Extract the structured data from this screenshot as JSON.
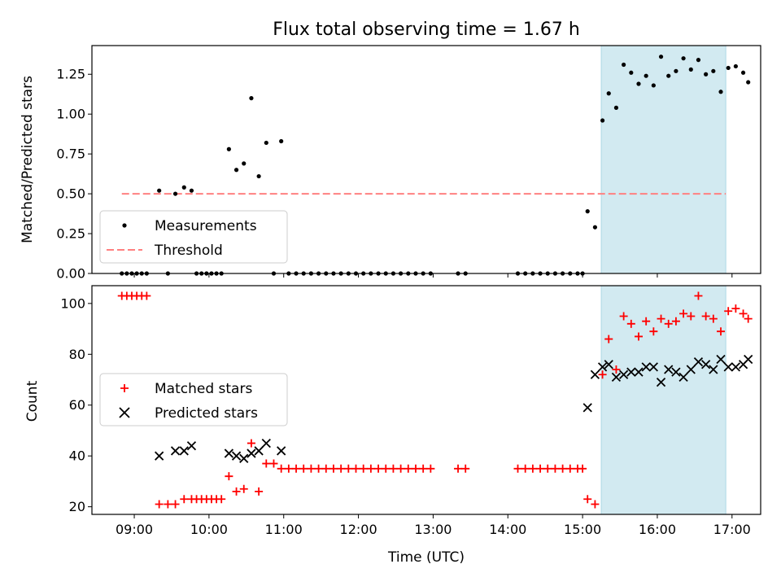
{
  "colors": {
    "measurement": "#000000",
    "threshold": "#ff8080",
    "matched": "#ff0000",
    "predicted": "#000000",
    "highlight": "#add8e6"
  },
  "chart_data": [
    {
      "type": "scatter",
      "title": "Flux total observing time = 1.67 h",
      "xlabel": "",
      "ylabel": "Matched/Predicted stars",
      "xlim": [
        "08:26",
        "17:23"
      ],
      "ylim": [
        0,
        1.43
      ],
      "yticks": [
        "0.00",
        "0.25",
        "0.50",
        "0.75",
        "1.00",
        "1.25"
      ],
      "highlight_span": [
        "15:15",
        "16:55"
      ],
      "legend": {
        "position": "lower-left",
        "entries": [
          "Measurements",
          "Threshold"
        ]
      },
      "threshold": {
        "name": "Threshold",
        "y": 0.5,
        "x": [
          "08:50",
          "16:55"
        ]
      },
      "series": [
        {
          "name": "Measurements",
          "marker": "dot",
          "points": [
            [
              "08:50",
              0
            ],
            [
              "08:54",
              0
            ],
            [
              "08:58",
              0
            ],
            [
              "09:02",
              0
            ],
            [
              "09:06",
              0
            ],
            [
              "09:10",
              0
            ],
            [
              "09:20",
              0.52
            ],
            [
              "09:27",
              0
            ],
            [
              "09:33",
              0.5
            ],
            [
              "09:40",
              0.54
            ],
            [
              "09:46",
              0.52
            ],
            [
              "09:50",
              0
            ],
            [
              "09:54",
              0
            ],
            [
              "09:58",
              0
            ],
            [
              "10:02",
              0
            ],
            [
              "10:06",
              0
            ],
            [
              "10:10",
              0
            ],
            [
              "10:16",
              0.78
            ],
            [
              "10:22",
              0.65
            ],
            [
              "10:28",
              0.69
            ],
            [
              "10:34",
              1.1
            ],
            [
              "10:40",
              0.61
            ],
            [
              "10:46",
              0.82
            ],
            [
              "10:52",
              0
            ],
            [
              "10:58",
              0.83
            ],
            [
              "11:04",
              0
            ],
            [
              "11:10",
              0
            ],
            [
              "11:16",
              0
            ],
            [
              "11:22",
              0
            ],
            [
              "11:28",
              0
            ],
            [
              "11:34",
              0
            ],
            [
              "11:40",
              0
            ],
            [
              "11:46",
              0
            ],
            [
              "11:52",
              0
            ],
            [
              "11:58",
              0
            ],
            [
              "12:04",
              0
            ],
            [
              "12:10",
              0
            ],
            [
              "12:16",
              0
            ],
            [
              "12:22",
              0
            ],
            [
              "12:28",
              0
            ],
            [
              "12:34",
              0
            ],
            [
              "12:40",
              0
            ],
            [
              "12:46",
              0
            ],
            [
              "12:52",
              0
            ],
            [
              "12:58",
              0
            ],
            [
              "13:20",
              0
            ],
            [
              "13:26",
              0
            ],
            [
              "14:08",
              0
            ],
            [
              "14:14",
              0
            ],
            [
              "14:20",
              0
            ],
            [
              "14:26",
              0
            ],
            [
              "14:32",
              0
            ],
            [
              "14:38",
              0
            ],
            [
              "14:44",
              0
            ],
            [
              "14:50",
              0
            ],
            [
              "14:56",
              0
            ],
            [
              "15:00",
              0
            ],
            [
              "15:04",
              0.39
            ],
            [
              "15:10",
              0.29
            ],
            [
              "15:16",
              0.96
            ],
            [
              "15:21",
              1.13
            ],
            [
              "15:27",
              1.04
            ],
            [
              "15:33",
              1.31
            ],
            [
              "15:39",
              1.26
            ],
            [
              "15:45",
              1.19
            ],
            [
              "15:51",
              1.24
            ],
            [
              "15:57",
              1.18
            ],
            [
              "16:03",
              1.36
            ],
            [
              "16:09",
              1.24
            ],
            [
              "16:15",
              1.27
            ],
            [
              "16:21",
              1.35
            ],
            [
              "16:27",
              1.28
            ],
            [
              "16:33",
              1.34
            ],
            [
              "16:39",
              1.25
            ],
            [
              "16:45",
              1.27
            ],
            [
              "16:51",
              1.14
            ],
            [
              "16:57",
              1.29
            ],
            [
              "17:03",
              1.3
            ],
            [
              "17:09",
              1.26
            ],
            [
              "17:13",
              1.2
            ]
          ]
        }
      ]
    },
    {
      "type": "scatter",
      "title": "",
      "xlabel": "Time (UTC)",
      "ylabel": "Count",
      "xlim": [
        "08:26",
        "17:23"
      ],
      "ylim": [
        17,
        107
      ],
      "xticks": [
        "09:00",
        "10:00",
        "11:00",
        "12:00",
        "13:00",
        "14:00",
        "15:00",
        "16:00",
        "17:00"
      ],
      "yticks": [
        "20",
        "40",
        "60",
        "80",
        "100"
      ],
      "highlight_span": [
        "15:15",
        "16:55"
      ],
      "legend": {
        "position": "center-left",
        "entries": [
          "Matched stars",
          "Predicted stars"
        ]
      },
      "series": [
        {
          "name": "Matched stars",
          "marker": "plus",
          "points": [
            [
              "08:50",
              103
            ],
            [
              "08:54",
              103
            ],
            [
              "08:58",
              103
            ],
            [
              "09:02",
              103
            ],
            [
              "09:06",
              103
            ],
            [
              "09:10",
              103
            ],
            [
              "09:20",
              21
            ],
            [
              "09:27",
              21
            ],
            [
              "09:33",
              21
            ],
            [
              "09:40",
              23
            ],
            [
              "09:46",
              23
            ],
            [
              "09:50",
              23
            ],
            [
              "09:54",
              23
            ],
            [
              "09:58",
              23
            ],
            [
              "10:02",
              23
            ],
            [
              "10:06",
              23
            ],
            [
              "10:10",
              23
            ],
            [
              "10:16",
              32
            ],
            [
              "10:22",
              26
            ],
            [
              "10:28",
              27
            ],
            [
              "10:34",
              45
            ],
            [
              "10:40",
              26
            ],
            [
              "10:46",
              37
            ],
            [
              "10:52",
              37
            ],
            [
              "10:58",
              35
            ],
            [
              "11:04",
              35
            ],
            [
              "11:10",
              35
            ],
            [
              "11:16",
              35
            ],
            [
              "11:22",
              35
            ],
            [
              "11:28",
              35
            ],
            [
              "11:34",
              35
            ],
            [
              "11:40",
              35
            ],
            [
              "11:46",
              35
            ],
            [
              "11:52",
              35
            ],
            [
              "11:58",
              35
            ],
            [
              "12:04",
              35
            ],
            [
              "12:10",
              35
            ],
            [
              "12:16",
              35
            ],
            [
              "12:22",
              35
            ],
            [
              "12:28",
              35
            ],
            [
              "12:34",
              35
            ],
            [
              "12:40",
              35
            ],
            [
              "12:46",
              35
            ],
            [
              "12:52",
              35
            ],
            [
              "12:58",
              35
            ],
            [
              "13:20",
              35
            ],
            [
              "13:26",
              35
            ],
            [
              "14:08",
              35
            ],
            [
              "14:14",
              35
            ],
            [
              "14:20",
              35
            ],
            [
              "14:26",
              35
            ],
            [
              "14:32",
              35
            ],
            [
              "14:38",
              35
            ],
            [
              "14:44",
              35
            ],
            [
              "14:50",
              35
            ],
            [
              "14:56",
              35
            ],
            [
              "15:00",
              35
            ],
            [
              "15:04",
              23
            ],
            [
              "15:10",
              21
            ],
            [
              "15:16",
              72
            ],
            [
              "15:21",
              86
            ],
            [
              "15:27",
              74
            ],
            [
              "15:33",
              95
            ],
            [
              "15:39",
              92
            ],
            [
              "15:45",
              87
            ],
            [
              "15:51",
              93
            ],
            [
              "15:57",
              89
            ],
            [
              "16:03",
              94
            ],
            [
              "16:09",
              92
            ],
            [
              "16:15",
              93
            ],
            [
              "16:21",
              96
            ],
            [
              "16:27",
              95
            ],
            [
              "16:33",
              103
            ],
            [
              "16:39",
              95
            ],
            [
              "16:45",
              94
            ],
            [
              "16:51",
              89
            ],
            [
              "16:57",
              97
            ],
            [
              "17:03",
              98
            ],
            [
              "17:09",
              96
            ],
            [
              "17:13",
              94
            ]
          ]
        },
        {
          "name": "Predicted stars",
          "marker": "x",
          "points": [
            [
              "09:20",
              40
            ],
            [
              "09:33",
              42
            ],
            [
              "09:40",
              42
            ],
            [
              "09:46",
              44
            ],
            [
              "10:16",
              41
            ],
            [
              "10:22",
              40
            ],
            [
              "10:28",
              39
            ],
            [
              "10:34",
              41
            ],
            [
              "10:40",
              42
            ],
            [
              "10:46",
              45
            ],
            [
              "10:58",
              42
            ],
            [
              "15:04",
              59
            ],
            [
              "15:10",
              72
            ],
            [
              "15:16",
              75
            ],
            [
              "15:21",
              76
            ],
            [
              "15:27",
              71
            ],
            [
              "15:33",
              72
            ],
            [
              "15:39",
              73
            ],
            [
              "15:45",
              73
            ],
            [
              "15:51",
              75
            ],
            [
              "15:57",
              75
            ],
            [
              "16:03",
              69
            ],
            [
              "16:09",
              74
            ],
            [
              "16:15",
              73
            ],
            [
              "16:21",
              71
            ],
            [
              "16:27",
              74
            ],
            [
              "16:33",
              77
            ],
            [
              "16:39",
              76
            ],
            [
              "16:45",
              74
            ],
            [
              "16:51",
              78
            ],
            [
              "16:57",
              75
            ],
            [
              "17:03",
              75
            ],
            [
              "17:09",
              76
            ],
            [
              "17:13",
              78
            ]
          ]
        }
      ]
    }
  ]
}
